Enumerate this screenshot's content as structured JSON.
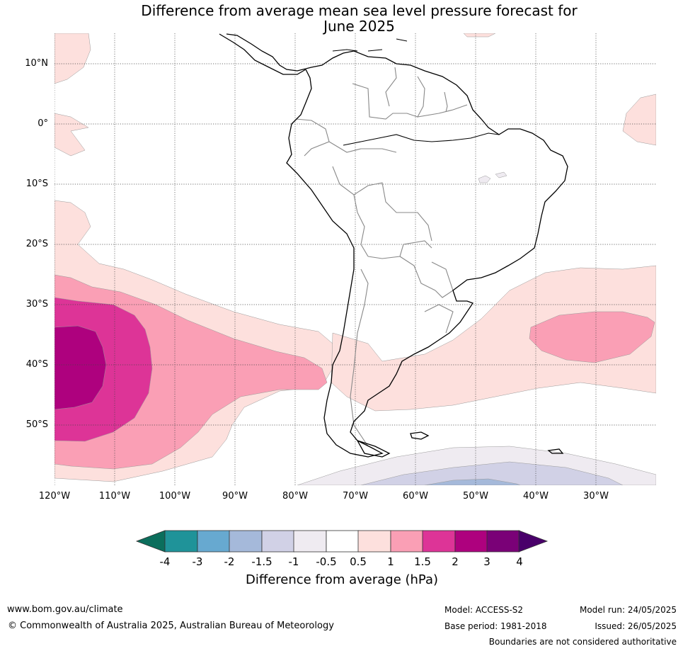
{
  "title_line1": "Difference from average mean sea level pressure forecast for",
  "title_line2": "June 2025",
  "lat_labels": [
    "10°N",
    "0°",
    "10°S",
    "20°S",
    "30°S",
    "40°S",
    "50°S"
  ],
  "lon_labels": [
    "120°W",
    "110°W",
    "100°W",
    "90°W",
    "80°W",
    "70°W",
    "60°W",
    "50°W",
    "40°W",
    "30°W"
  ],
  "colorbar": {
    "ticks": [
      "-4",
      "-3",
      "-2",
      "-1.5",
      "-1",
      "-0.5",
      "0.5",
      "1",
      "1.5",
      "2",
      "3",
      "4"
    ],
    "colors": [
      "#0b6e5c",
      "#1f9399",
      "#67a9d0",
      "#a5b9da",
      "#d1d1e6",
      "#efebf1",
      "#ffffff",
      "#fde0dd",
      "#fa9fb5",
      "#dd3497",
      "#ae017e",
      "#7a0177",
      "#49006a"
    ],
    "label": "Difference from average (hPa)"
  },
  "footer": {
    "website": "www.bom.gov.au/climate",
    "copyright": "© Commonwealth of Australia 2025, Australian Bureau of Meteorology",
    "model": "Model: ACCESS-S2",
    "base_period": "Base period: 1981-2018",
    "model_run": "Model run: 24/05/2025",
    "issued": "Issued: 26/05/2025",
    "disclaimer": "Boundaries are not considered authoritative"
  }
}
